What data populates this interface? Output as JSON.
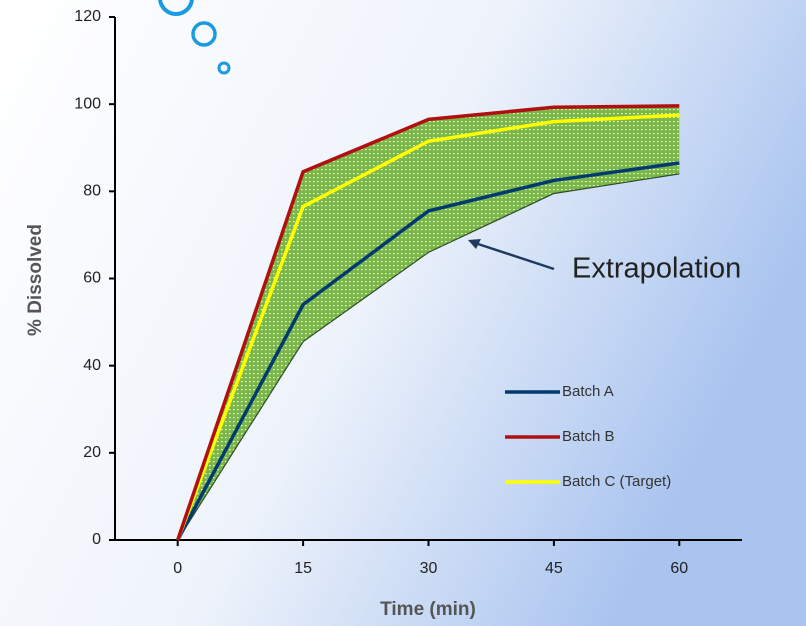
{
  "chart_data": {
    "type": "line",
    "x": [
      0,
      15,
      30,
      45,
      60
    ],
    "series": [
      {
        "name": "Batch A",
        "color": "#003a70",
        "values": [
          0,
          54,
          75.5,
          82.5,
          86.5
        ]
      },
      {
        "name": "Batch B",
        "color": "#b01010",
        "values": [
          0,
          84.5,
          96.5,
          99.3,
          99.6
        ]
      },
      {
        "name": "Batch C (Target)",
        "color": "#ffff00",
        "values": [
          0,
          76.5,
          91.5,
          96,
          97.5
        ]
      }
    ],
    "band": {
      "lower": [
        0,
        45.5,
        66,
        79.5,
        84
      ],
      "color": "#7ab648"
    },
    "xlim": [
      -7.5,
      67.5
    ],
    "xticks": [
      0,
      15,
      30,
      45,
      60
    ],
    "ylim": [
      0,
      120
    ],
    "yticks": [
      0,
      20,
      40,
      60,
      80,
      100,
      120
    ],
    "xlabel": "Time (min)",
    "ylabel": "% Dissolved",
    "annotation": "Extrapolation"
  }
}
